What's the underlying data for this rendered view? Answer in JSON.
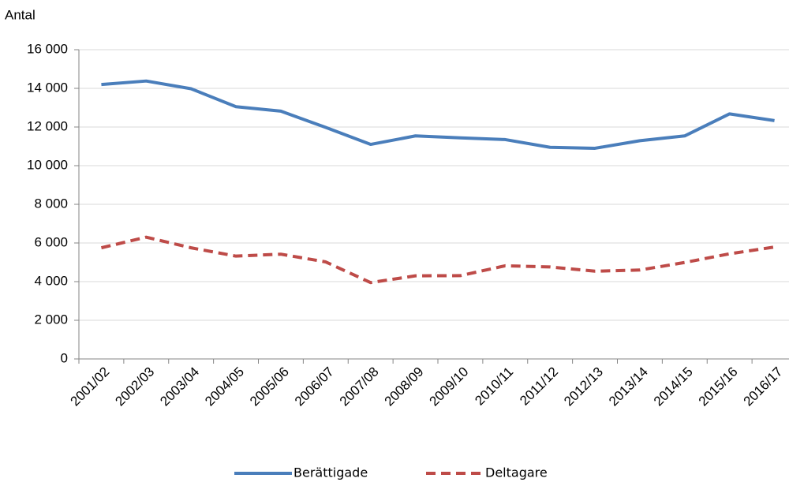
{
  "chart_data": {
    "type": "line",
    "y_label": "Antal",
    "categories": [
      "2001/02",
      "2002/03",
      "2003/04",
      "2004/05",
      "2005/06",
      "2006/07",
      "2007/08",
      "2008/09",
      "2009/10",
      "2010/11",
      "2011/12",
      "2012/13",
      "2013/14",
      "2014/15",
      "2015/16",
      "2016/17"
    ],
    "series": [
      {
        "name": "Berättigade",
        "color": "#4a7ebb",
        "dash": "solid",
        "values": [
          14200,
          14380,
          13980,
          13050,
          12820,
          11980,
          11100,
          11540,
          11440,
          11350,
          10950,
          10900,
          11290,
          11540,
          12680,
          12330
        ]
      },
      {
        "name": "Deltagare",
        "color": "#be4b48",
        "dash": "dashed",
        "values": [
          5750,
          6300,
          5750,
          5320,
          5420,
          5020,
          3950,
          4300,
          4310,
          4820,
          4760,
          4540,
          4600,
          4990,
          5440,
          5790
        ]
      }
    ],
    "ylim": [
      0,
      16000
    ],
    "yticks": [
      0,
      {
        "value": 2000,
        "label": "2 000"
      },
      {
        "value": 4000,
        "label": "4 000"
      },
      {
        "value": 6000,
        "label": "6 000"
      },
      {
        "value": 8000,
        "label": "8 000"
      },
      {
        "value": 10000,
        "label": "10 000"
      },
      {
        "value": 12000,
        "label": "12 000"
      },
      {
        "value": 14000,
        "label": "14 000"
      },
      {
        "value": 16000,
        "label": "16 000"
      }
    ],
    "grid": true,
    "legend": "bottom"
  }
}
